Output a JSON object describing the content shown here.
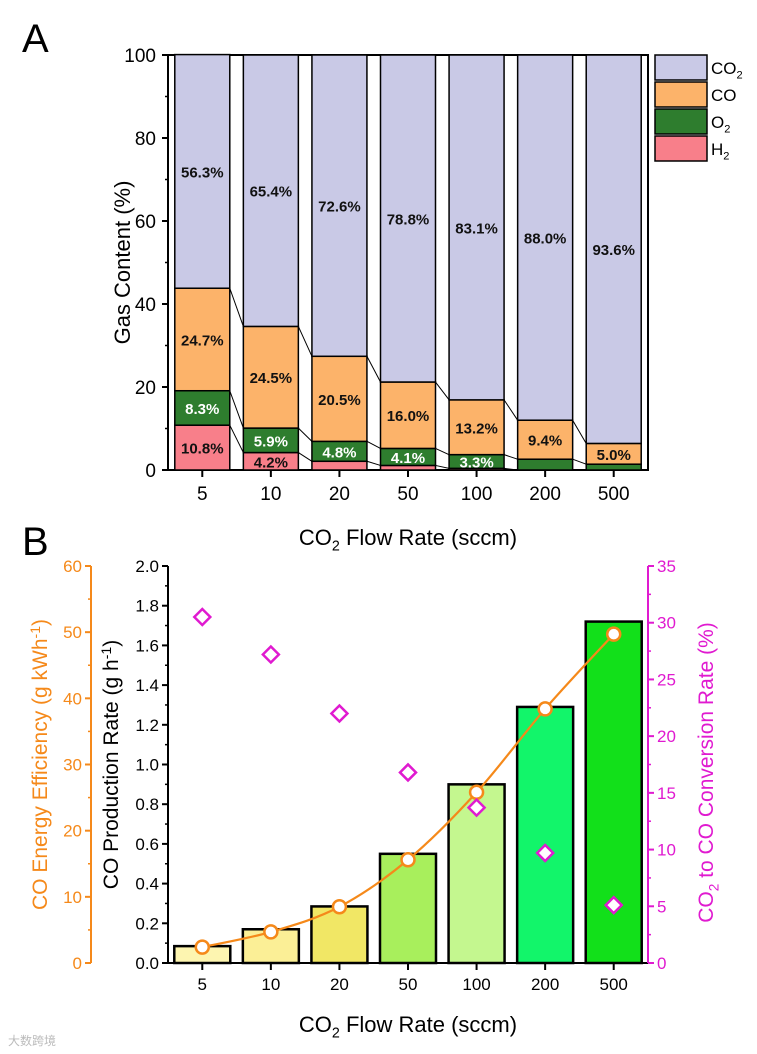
{
  "chart_data": [
    {
      "panel": "A",
      "type": "bar",
      "stacked": true,
      "xlabel": "CO2 Flow Rate (sccm)",
      "ylabel": "Gas Content (%)",
      "ylim": [
        0,
        100
      ],
      "yticks": [
        0,
        20,
        40,
        60,
        80,
        100
      ],
      "categories": [
        "5",
        "10",
        "20",
        "50",
        "100",
        "200",
        "500"
      ],
      "legend_position": "right",
      "series": [
        {
          "name": "H2",
          "color": "#f87f8a",
          "values": [
            10.8,
            4.2,
            2.1,
            1.1,
            0.4,
            0.0,
            0.0
          ],
          "labels": [
            "10.8%",
            "4.2%",
            null,
            null,
            null,
            null,
            null
          ]
        },
        {
          "name": "O2",
          "color": "#2e7d2e",
          "values": [
            8.3,
            5.9,
            4.8,
            4.1,
            3.3,
            2.6,
            1.4
          ],
          "labels": [
            "8.3%",
            "5.9%",
            "4.8%",
            "4.1%",
            "3.3%",
            null,
            null
          ]
        },
        {
          "name": "CO",
          "color": "#fcb36a",
          "values": [
            24.7,
            24.5,
            20.5,
            16.0,
            13.2,
            9.4,
            5.0
          ],
          "labels": [
            "24.7%",
            "24.5%",
            "20.5%",
            "16.0%",
            "13.2%",
            "9.4%",
            "5.0%"
          ]
        },
        {
          "name": "CO2",
          "color": "#c9c9e6",
          "values": [
            56.3,
            65.4,
            72.6,
            78.8,
            83.1,
            88.0,
            93.6
          ],
          "labels": [
            "56.3%",
            "65.4%",
            "72.6%",
            "78.8%",
            "83.1%",
            "88.0%",
            "93.6%"
          ]
        }
      ]
    },
    {
      "panel": "B",
      "type": "bar",
      "xlabel": "CO2 Flow Rate (sccm)",
      "categories": [
        "5",
        "10",
        "20",
        "50",
        "100",
        "200",
        "500"
      ],
      "bars": {
        "name": "CO Production Rate (g h-1)",
        "ylim": [
          0,
          2.0
        ],
        "yticks": [
          "0.0",
          "0.2",
          "0.4",
          "0.6",
          "0.8",
          "1.0",
          "1.2",
          "1.4",
          "1.6",
          "1.8",
          "2.0"
        ],
        "values": [
          0.085,
          0.17,
          0.285,
          0.55,
          0.9,
          1.29,
          1.72
        ],
        "colors": [
          "#fdf5b0",
          "#fbef96",
          "#f1e765",
          "#a8ef5c",
          "#c4f78f",
          "#12f56a",
          "#12e01a"
        ]
      },
      "line": {
        "name": "CO Energy Efficiency (g kWh-1)",
        "color": "#f5891a",
        "ylim": [
          0,
          60
        ],
        "yticks": [
          "0",
          "10",
          "20",
          "30",
          "40",
          "50",
          "60"
        ],
        "values": [
          2.4,
          4.7,
          8.5,
          15.6,
          25.8,
          38.4,
          49.7
        ]
      },
      "scatter": {
        "name": "CO2 to CO Conversion Rate (%)",
        "color": "#e01ad0",
        "ylim": [
          0,
          35
        ],
        "yticks": [
          "0",
          "5",
          "10",
          "15",
          "20",
          "25",
          "30",
          "35"
        ],
        "values": [
          30.5,
          27.2,
          22.0,
          16.8,
          13.7,
          9.7,
          5.1
        ]
      }
    }
  ],
  "labels": {
    "panel_a": "A",
    "panel_b": "B",
    "watermark": "大数跨境"
  }
}
